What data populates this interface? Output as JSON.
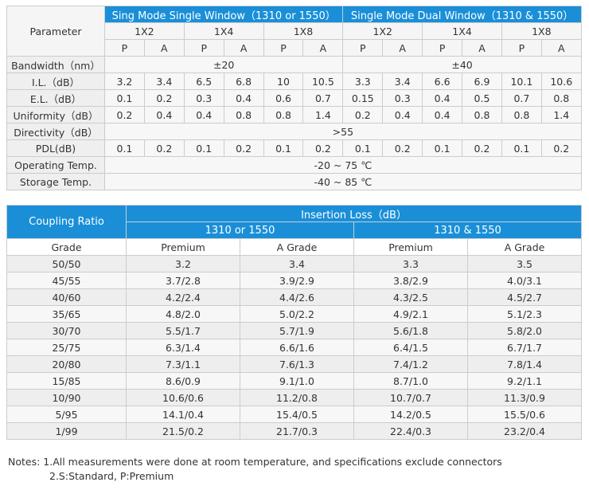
{
  "table1": {
    "parameter_label": "Parameter",
    "group1": "Sing Mode Single Window（1310 or 1550）",
    "group2": "Single Mode Dual Window（1310 & 1550）",
    "ports": [
      "1X2",
      "1X4",
      "1X8",
      "1X2",
      "1X4",
      "1X8"
    ],
    "grades": [
      "P",
      "A",
      "P",
      "A",
      "P",
      "A",
      "P",
      "A",
      "P",
      "A",
      "P",
      "A"
    ],
    "bandwidth": {
      "label": "Bandwidth（nm）",
      "single": "±20",
      "dual": "±40"
    },
    "il": {
      "label": "I.L.（dB）",
      "values": [
        "3.2",
        "3.4",
        "6.5",
        "6.8",
        "10",
        "10.5",
        "3.3",
        "3.4",
        "6.6",
        "6.9",
        "10.1",
        "10.6"
      ]
    },
    "el": {
      "label": "E.L.（dB）",
      "values": [
        "0.1",
        "0.2",
        "0.3",
        "0.4",
        "0.6",
        "0.7",
        "0.15",
        "0.3",
        "0.4",
        "0.5",
        "0.7",
        "0.8"
      ]
    },
    "uniformity": {
      "label": "Uniformity（dB）",
      "values": [
        "0.2",
        "0.4",
        "0.4",
        "0.8",
        "0.8",
        "1.4",
        "0.2",
        "0.4",
        "0.4",
        "0.8",
        "0.8",
        "1.4"
      ]
    },
    "directivity": {
      "label": "Directivity（dB）",
      "value": ">55"
    },
    "pdl": {
      "label": "PDL(dB)",
      "values": [
        "0.1",
        "0.2",
        "0.1",
        "0.2",
        "0.1",
        "0.2",
        "0.1",
        "0.2",
        "0.1",
        "0.2",
        "0.1",
        "0.2"
      ]
    },
    "operating": {
      "label": "Operating Temp.",
      "value": "-20 ~ 75 ℃"
    },
    "storage": {
      "label": "Storage Temp.",
      "value": "-40 ~ 85 ℃"
    }
  },
  "table2": {
    "coupling_label": "Coupling Ratio",
    "insertion_label": "Insertion Loss（dB）",
    "win1": "1310 or 1550",
    "win2": "1310 & 1550",
    "grade_label": "Grade",
    "grades": [
      "Premium",
      "A Grade",
      "Premium",
      "A Grade"
    ],
    "rows": [
      {
        "ratio": "50/50",
        "v": [
          "3.2",
          "3.4",
          "3.3",
          "3.5"
        ]
      },
      {
        "ratio": "45/55",
        "v": [
          "3.7/2.8",
          "3.9/2.9",
          "3.8/2.9",
          "4.0/3.1"
        ]
      },
      {
        "ratio": "40/60",
        "v": [
          "4.2/2.4",
          "4.4/2.6",
          "4.3/2.5",
          "4.5/2.7"
        ]
      },
      {
        "ratio": "35/65",
        "v": [
          "4.8/2.0",
          "5.0/2.2",
          "4.9/2.1",
          "5.1/2.3"
        ]
      },
      {
        "ratio": "30/70",
        "v": [
          "5.5/1.7",
          "5.7/1.9",
          "5.6/1.8",
          "5.8/2.0"
        ]
      },
      {
        "ratio": "25/75",
        "v": [
          "6.3/1.4",
          "6.6/1.6",
          "6.4/1.5",
          "6.7/1.7"
        ]
      },
      {
        "ratio": "20/80",
        "v": [
          "7.3/1.1",
          "7.6/1.3",
          "7.4/1.2",
          "7.8/1.4"
        ]
      },
      {
        "ratio": "15/85",
        "v": [
          "8.6/0.9",
          "9.1/1.0",
          "8.7/1.0",
          "9.2/1.1"
        ]
      },
      {
        "ratio": "10/90",
        "v": [
          "10.6/0.6",
          "11.2/0.8",
          "10.7/0.7",
          "11.3/0.9"
        ]
      },
      {
        "ratio": "5/95",
        "v": [
          "14.1/0.4",
          "15.4/0.5",
          "14.2/0.5",
          "15.5/0.6"
        ]
      },
      {
        "ratio": "1/99",
        "v": [
          "21.5/0.2",
          "21.7/0.3",
          "22.4/0.3",
          "23.2/0.4"
        ]
      }
    ]
  },
  "notes": {
    "line1": "Notes: 1.All measurements were done at room temperature, and specifications exclude connectors",
    "line2": "2.S:Standard, P:Premium"
  },
  "colors": {
    "header_blue": "#1a8fd8"
  }
}
